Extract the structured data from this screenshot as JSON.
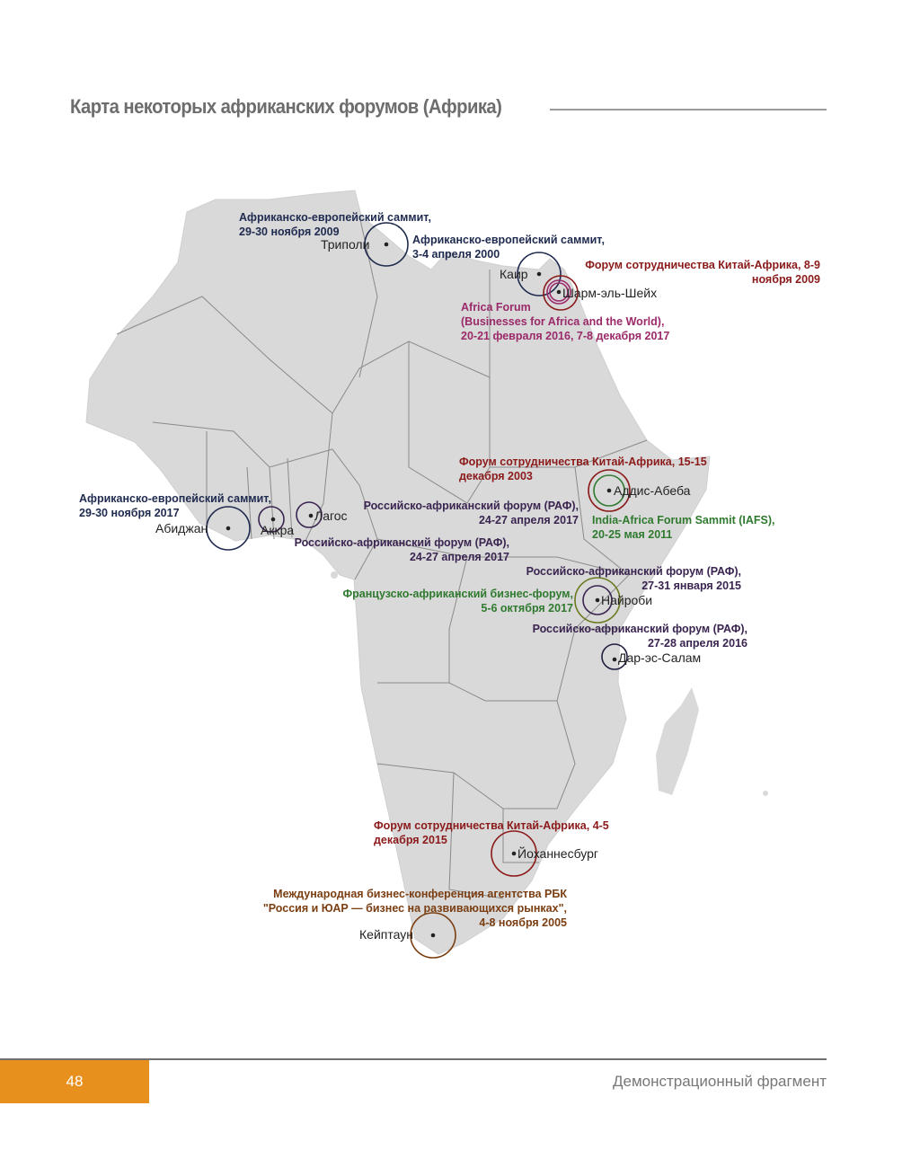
{
  "title": "Карта некоторых африканских форумов (Африка)",
  "colors": {
    "land": "#d9d9d9",
    "border": "#8a8a8a",
    "navy": "#1f2a4f",
    "darkred": "#8b1a1a",
    "magenta": "#9b2a6a",
    "green": "#2f7a2f",
    "purple": "#3a2450",
    "brown": "#7a3e12",
    "olive": "#6b7a1f",
    "accent": "#e8901e"
  },
  "cities": {
    "tripoli": "Триполи",
    "cairo": "Каир",
    "sharm": "Шарм-эль-Шейх",
    "addis": "Аддис-Абеба",
    "abidjan": "Абиджан",
    "accra": "Аккра",
    "lagos": "Лагос",
    "nairobi": "Найроби",
    "dar": "Дар-эс-Салам",
    "johannesburg": "Йоханнесбург",
    "capetown": "Кейптаун"
  },
  "events": {
    "tripoli_2009": [
      "Африканско-европейский саммит,",
      "29-30 ноября 2009"
    ],
    "cairo_2000": [
      "Африканско-европейский саммит,",
      "3-4 апреля 2000"
    ],
    "sharm_2009": [
      "Форум сотрудничества Китай-Африка, 8-9",
      "ноября 2009"
    ],
    "sharm_af": [
      "Africa Forum",
      "(Businesses for Africa and the World),",
      "20-21 февраля 2016, 7-8 декабря 2017"
    ],
    "addis_2003": [
      "Форум сотрудничества Китай-Африка, 15-15",
      "декабря 2003"
    ],
    "addis_2011": [
      "India-Africa Forum Sammit (IAFS),",
      "20-25 мая 2011"
    ],
    "abidjan_2017": [
      "Африканско-европейский саммит,",
      "29-30 ноября 2017"
    ],
    "lagos_raf": [
      "Российско-африканский форум (РАФ),",
      "24-27 апреля 2017"
    ],
    "accra_raf": [
      "Российско-африканский форум (РАФ),",
      "24-27 апреля 2017"
    ],
    "nairobi_raf": [
      "Российско-африканский форум (РАФ),",
      "27-31 января 2015"
    ],
    "nairobi_fr": [
      "Французско-африканский бизнес-форум,",
      "5-6 октября 2017"
    ],
    "dar_raf": [
      "Российско-африканский форум (РАФ),",
      "27-28 апреля 2016"
    ],
    "jburg_2015": [
      "Форум сотрудничества Китай-Африка, 4-5",
      "декабря 2015"
    ],
    "cape_2005": [
      "Международная бизнес-конференция агентства РБК",
      "\"Россия и ЮАР — бизнес на развивающихся рынках\",",
      "4-8 ноября 2005"
    ]
  },
  "footer": {
    "page_number": "48",
    "text": "Демонстрационный фрагмент"
  }
}
